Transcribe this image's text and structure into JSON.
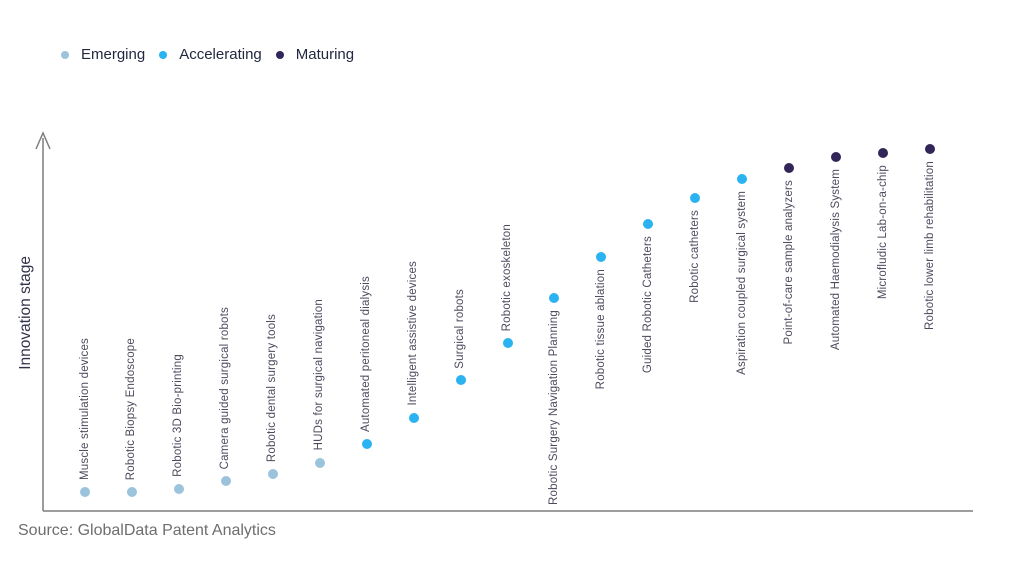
{
  "legend": {
    "items": [
      {
        "label": "Emerging",
        "color": "#9cc3dc"
      },
      {
        "label": "Accelerating",
        "color": "#2ab3f0"
      },
      {
        "label": "Maturing",
        "color": "#322659"
      }
    ]
  },
  "axis": {
    "y_title": "Innovation stage"
  },
  "source_note": "Source: GlobalData Patent Analytics",
  "chart_data": {
    "type": "scatter",
    "title": "",
    "ylabel": "Innovation stage",
    "xlabel": "",
    "legend_entries": [
      "Emerging",
      "Accelerating",
      "Maturing"
    ],
    "legend_position": "top-left",
    "grid": false,
    "axis_ticks_visible": false,
    "y_scale_note": "unlabeled ordinal axis; level estimated 0-100 from dot height",
    "points": [
      {
        "label": "Muscle stimulation devices",
        "stage": "Emerging",
        "level": 5
      },
      {
        "label": "Robotic Biopsy Endoscope",
        "stage": "Emerging",
        "level": 5
      },
      {
        "label": "Robotic 3D Bio-printing",
        "stage": "Emerging",
        "level": 6
      },
      {
        "label": "Camera guided surgical robots",
        "stage": "Emerging",
        "level": 8
      },
      {
        "label": "Robotic dental surgery tools",
        "stage": "Emerging",
        "level": 10
      },
      {
        "label": "HUDs for surgical navigation",
        "stage": "Emerging",
        "level": 13
      },
      {
        "label": "Automated peritoneal dialysis",
        "stage": "Accelerating",
        "level": 18
      },
      {
        "label": "Intelligent assistive devices",
        "stage": "Accelerating",
        "level": 25
      },
      {
        "label": "Surgical robots",
        "stage": "Accelerating",
        "level": 35
      },
      {
        "label": "Robotic exoskeleton",
        "stage": "Accelerating",
        "level": 45
      },
      {
        "label": "Robotic Surgery Navigation Planning",
        "stage": "Accelerating",
        "level": 57
      },
      {
        "label": "Robotic tissue ablation",
        "stage": "Accelerating",
        "level": 68
      },
      {
        "label": "Guided Robotic Catheters",
        "stage": "Accelerating",
        "level": 77
      },
      {
        "label": "Robotic catheters",
        "stage": "Accelerating",
        "level": 84
      },
      {
        "label": "Aspiration coupled surgical system",
        "stage": "Accelerating",
        "level": 89
      },
      {
        "label": "Point-of-care sample analyzers",
        "stage": "Maturing",
        "level": 92
      },
      {
        "label": "Automated Haemodialysis System",
        "stage": "Maturing",
        "level": 95
      },
      {
        "label": "Microfludic Lab-on-a-chip",
        "stage": "Maturing",
        "level": 96
      },
      {
        "label": "Robotic lower limb rehabilitation",
        "stage": "Maturing",
        "level": 97
      }
    ]
  }
}
